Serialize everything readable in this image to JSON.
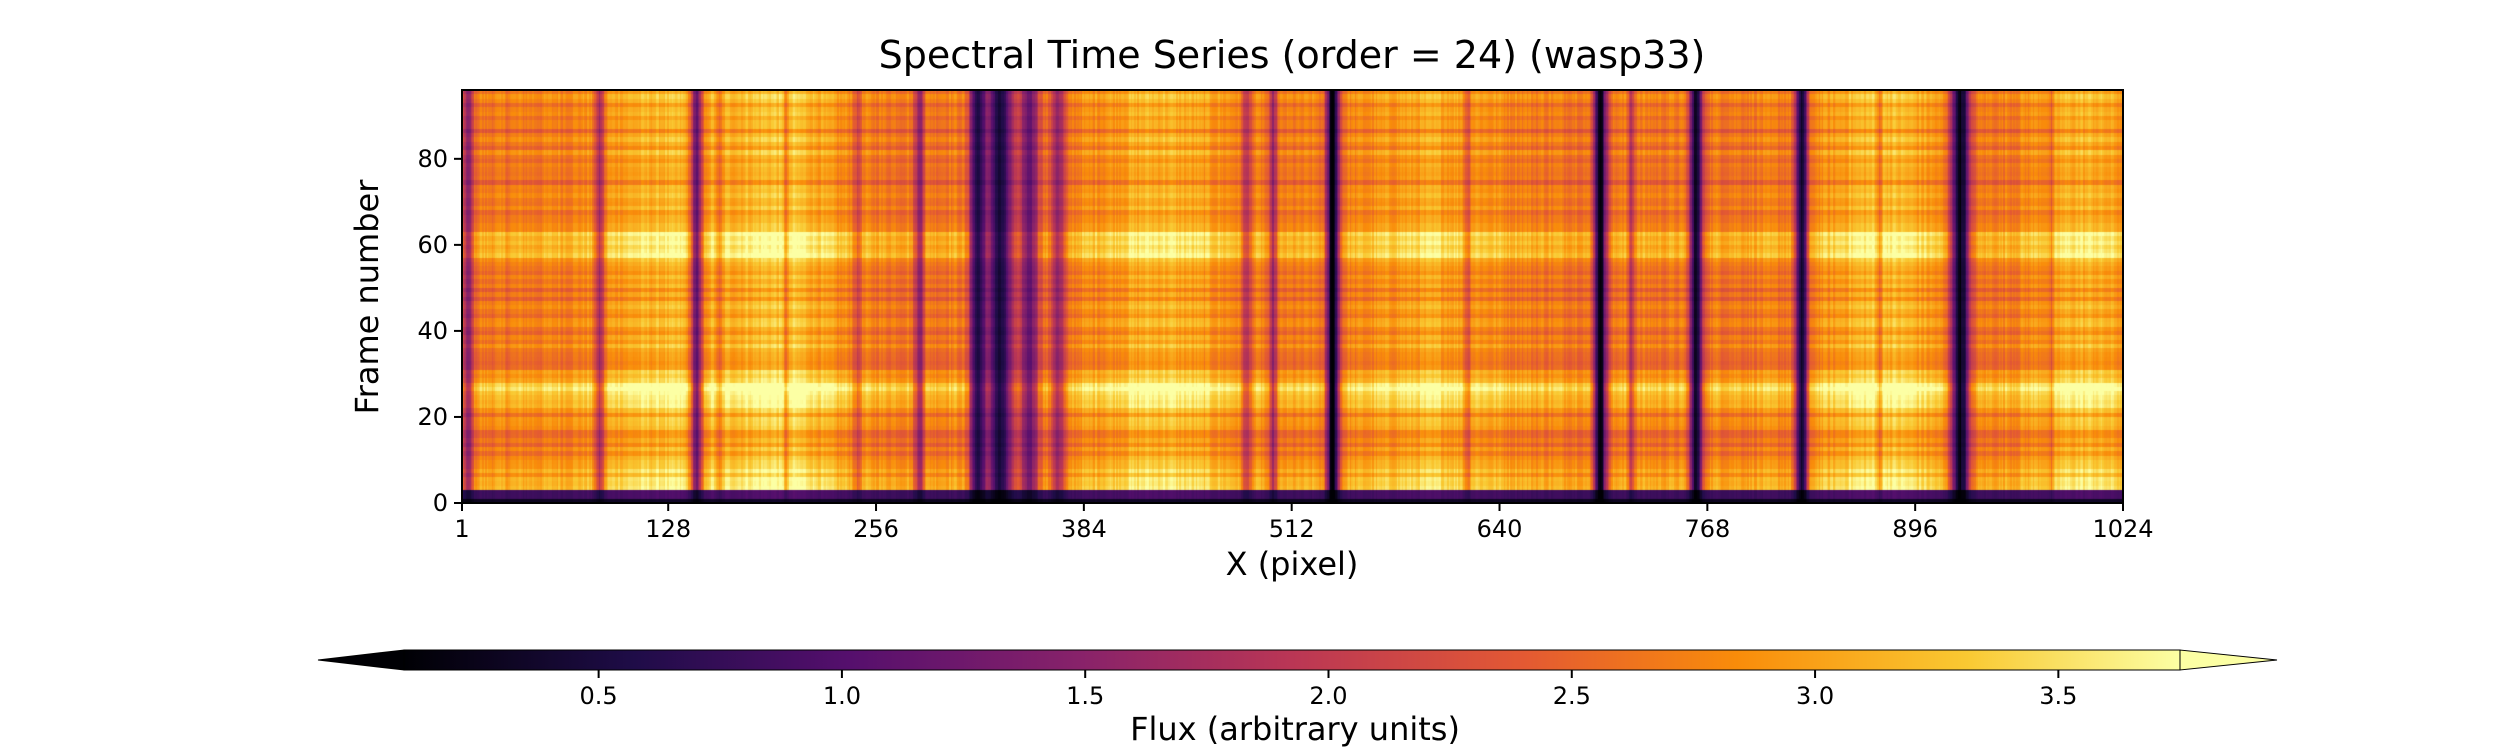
{
  "chart_data": {
    "type": "heatmap",
    "title": "Spectral Time Series (order = 24) (wasp33)",
    "xlabel": "X (pixel)",
    "ylabel": "Frame number",
    "colorbar_label": "Flux (arbitrary units)",
    "colormap": "inferno",
    "xlim": [
      1,
      1024
    ],
    "ylim": [
      0,
      96
    ],
    "x_ticks": [
      1,
      128,
      256,
      384,
      512,
      640,
      768,
      896,
      1024
    ],
    "y_ticks": [
      0,
      20,
      40,
      60,
      80
    ],
    "colorbar_range": [
      0.1,
      3.75
    ],
    "colorbar_extend": "both",
    "colorbar_ticks": [
      0.5,
      1.0,
      1.5,
      2.0,
      2.5,
      3.0,
      3.5
    ],
    "colorbar_tick_labels": [
      "0.5",
      "1.0",
      "1.5",
      "2.0",
      "2.5",
      "3.0",
      "3.5"
    ],
    "x_tick_labels": [
      "1",
      "128",
      "256",
      "384",
      "512",
      "640",
      "768",
      "896",
      "1024"
    ],
    "y_tick_labels": [
      "0",
      "20",
      "40",
      "60",
      "80"
    ],
    "baseline_flux": 2.9,
    "absorption_lines": [
      {
        "x": 4,
        "depth": 1.4,
        "width": 3
      },
      {
        "x": 85,
        "depth": 1.3,
        "width": 3
      },
      {
        "x": 145,
        "depth": 2.1,
        "width": 4
      },
      {
        "x": 159,
        "depth": 0.7,
        "width": 2
      },
      {
        "x": 200,
        "depth": 0.6,
        "width": 2
      },
      {
        "x": 244,
        "depth": 0.7,
        "width": 2
      },
      {
        "x": 282,
        "depth": 1.2,
        "width": 3
      },
      {
        "x": 318,
        "depth": 2.2,
        "width": 5
      },
      {
        "x": 332,
        "depth": 2.4,
        "width": 8
      },
      {
        "x": 350,
        "depth": 1.6,
        "width": 6
      },
      {
        "x": 368,
        "depth": 1.2,
        "width": 5
      },
      {
        "x": 484,
        "depth": 1.0,
        "width": 3
      },
      {
        "x": 500,
        "depth": 1.1,
        "width": 3
      },
      {
        "x": 537,
        "depth": 2.8,
        "width": 4
      },
      {
        "x": 620,
        "depth": 0.7,
        "width": 2
      },
      {
        "x": 702,
        "depth": 2.7,
        "width": 4
      },
      {
        "x": 721,
        "depth": 0.8,
        "width": 2
      },
      {
        "x": 761,
        "depth": 2.6,
        "width": 4
      },
      {
        "x": 826,
        "depth": 2.6,
        "width": 4
      },
      {
        "x": 874,
        "depth": 0.6,
        "width": 2
      },
      {
        "x": 924,
        "depth": 2.7,
        "width": 6
      },
      {
        "x": 980,
        "depth": 0.6,
        "width": 2
      }
    ],
    "bright_regions": [
      {
        "x": 130,
        "width": 50,
        "boost": 0.25
      },
      {
        "x": 200,
        "width": 30,
        "boost": 0.3
      },
      {
        "x": 430,
        "width": 40,
        "boost": 0.25
      },
      {
        "x": 600,
        "width": 40,
        "boost": 0.2
      },
      {
        "x": 875,
        "width": 35,
        "boost": 0.3
      },
      {
        "x": 1000,
        "width": 30,
        "boost": 0.25
      }
    ],
    "bright_frame_bands": [
      {
        "y": 5,
        "width": 3,
        "boost": 0.2
      },
      {
        "y": 25,
        "width": 4,
        "boost": 0.35
      },
      {
        "y": 60,
        "width": 4,
        "boost": 0.35
      }
    ]
  }
}
